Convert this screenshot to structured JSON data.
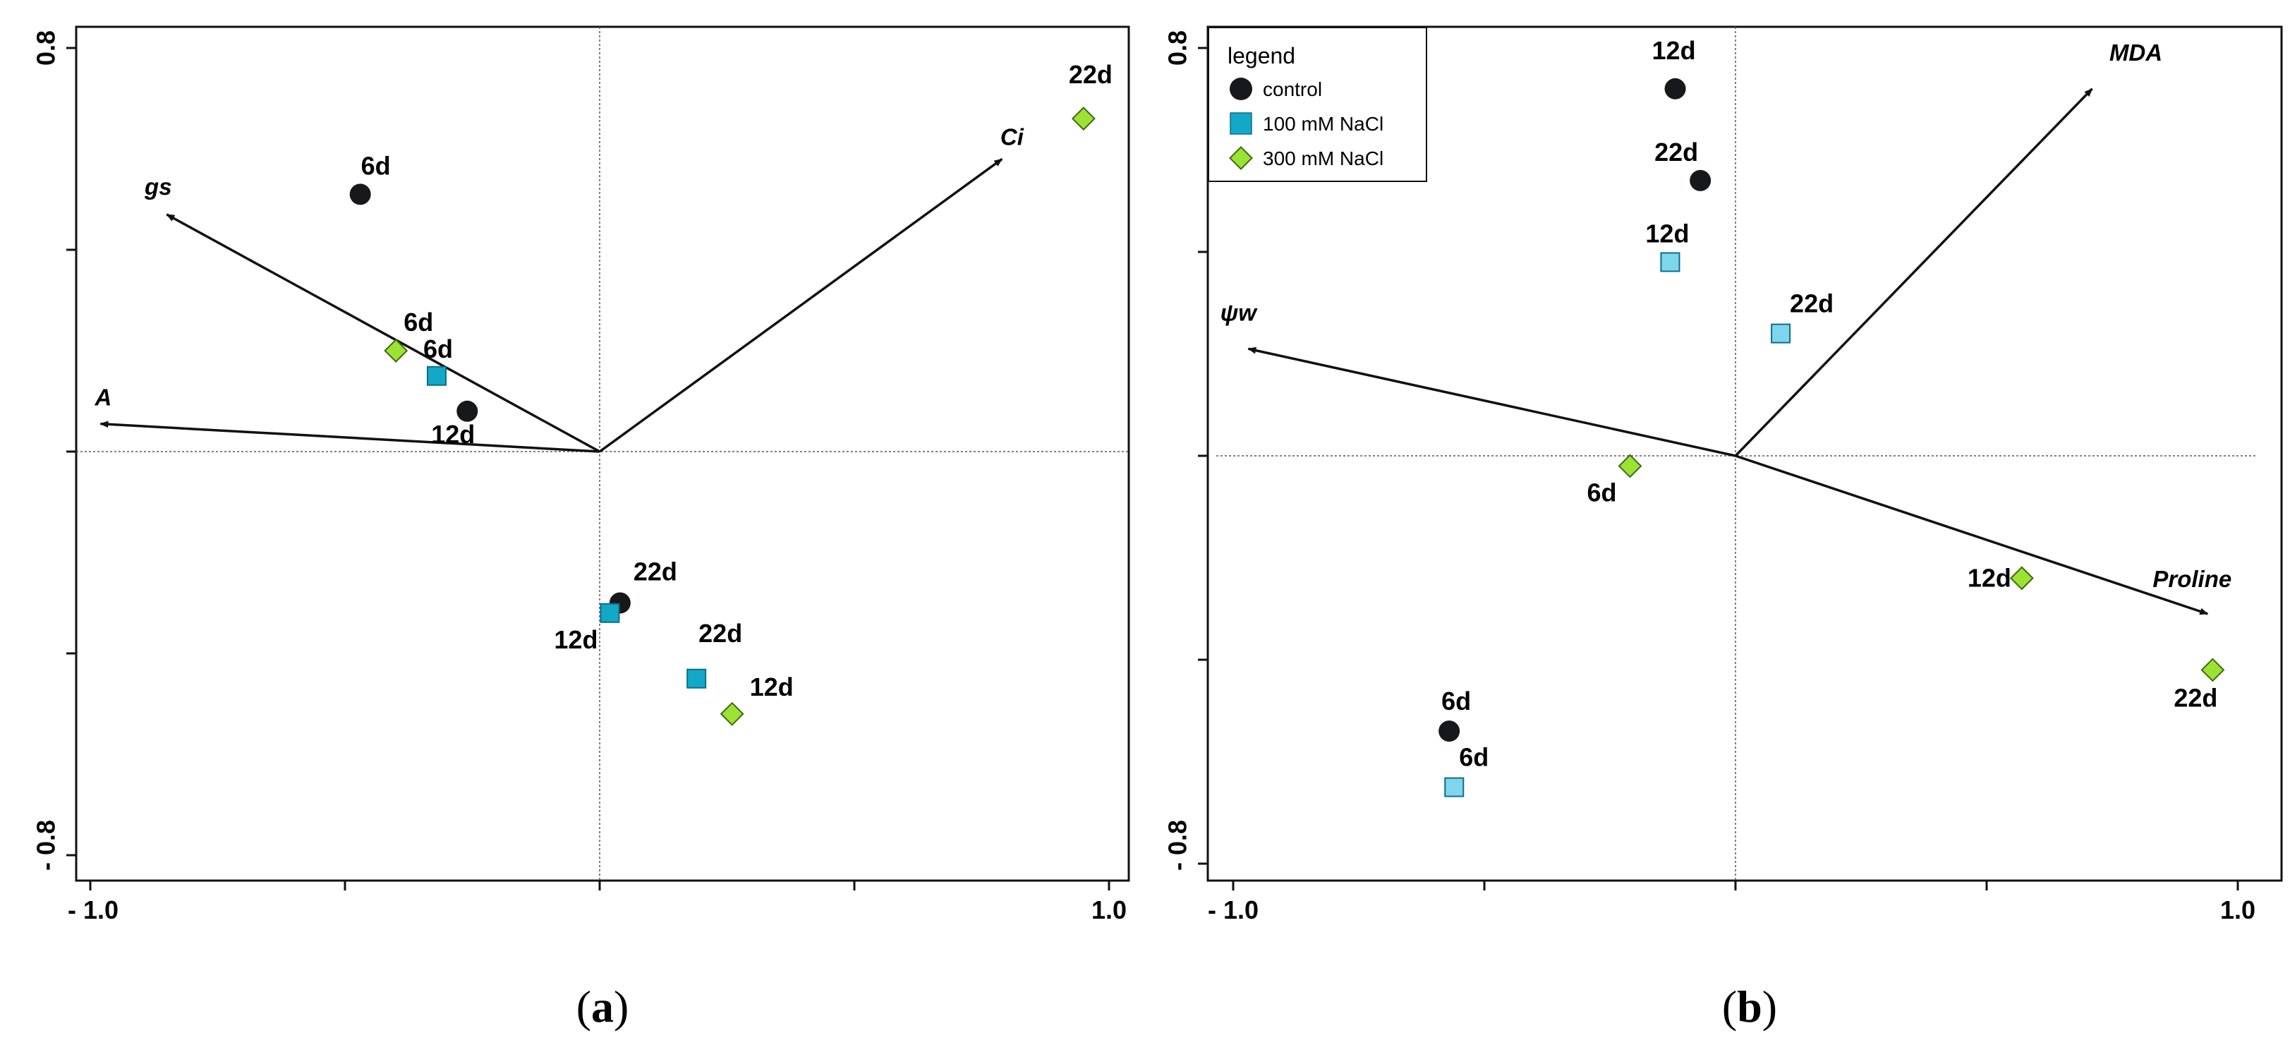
{
  "chart_data": [
    {
      "type": "scatter",
      "subtype": "PCA biplot",
      "panel_label": "(a)",
      "panel_letter": "a",
      "xlim": [
        -1.0,
        1.0
      ],
      "ylim": [
        -0.8,
        0.8
      ],
      "x_tick_labels": [
        "- 1.0",
        "1.0"
      ],
      "y_tick_labels": [
        "0.8",
        "- 0.8"
      ],
      "vectors": [
        {
          "name": "gs",
          "x": -0.85,
          "y": 0.47
        },
        {
          "name": "A",
          "x": -0.98,
          "y": 0.055
        },
        {
          "name": "Ci",
          "x": 0.79,
          "y": 0.58
        }
      ],
      "points": [
        {
          "label": "6d",
          "group": "control",
          "x": -0.47,
          "y": 0.51
        },
        {
          "label": "12d",
          "group": "control",
          "x": -0.26,
          "y": 0.08
        },
        {
          "label": "22d",
          "group": "control",
          "x": 0.04,
          "y": -0.3
        },
        {
          "label": "6d",
          "group": "100 mM NaCl",
          "x": -0.32,
          "y": 0.15
        },
        {
          "label": "12d",
          "group": "100 mM NaCl",
          "x": 0.02,
          "y": -0.32
        },
        {
          "label": "22d",
          "group": "100 mM NaCl",
          "x": 0.19,
          "y": -0.45
        },
        {
          "label": "6d",
          "group": "300 mM NaCl",
          "x": -0.4,
          "y": 0.2
        },
        {
          "label": "12d",
          "group": "300 mM NaCl",
          "x": 0.26,
          "y": -0.52
        },
        {
          "label": "22d",
          "group": "300 mM NaCl",
          "x": 0.95,
          "y": 0.66
        }
      ]
    },
    {
      "type": "scatter",
      "subtype": "PCA biplot",
      "panel_label": "(b)",
      "panel_letter": "b",
      "xlim": [
        -1.0,
        1.0
      ],
      "ylim": [
        -0.8,
        0.8
      ],
      "x_tick_labels": [
        "- 1.0",
        "1.0"
      ],
      "y_tick_labels": [
        "0.8",
        "- 0.8"
      ],
      "legend": {
        "title": "legend",
        "position": "top-left",
        "entries": [
          {
            "name": "control",
            "marker": "circle",
            "color": "#17181c"
          },
          {
            "name": "100 mM NaCl",
            "marker": "square",
            "color": "#13a8c8"
          },
          {
            "name": "300 mM NaCl",
            "marker": "diamond",
            "color": "#9be234"
          }
        ]
      },
      "vectors": [
        {
          "name": "ψw",
          "x": -0.97,
          "y": 0.21
        },
        {
          "name": "MDA",
          "x": 0.71,
          "y": 0.72
        },
        {
          "name": "Proline",
          "x": 0.94,
          "y": -0.31
        }
      ],
      "points": [
        {
          "label": "12d",
          "group": "control",
          "x": -0.12,
          "y": 0.72
        },
        {
          "label": "22d",
          "group": "control",
          "x": -0.07,
          "y": 0.54
        },
        {
          "label": "6d",
          "group": "control",
          "x": -0.57,
          "y": -0.54
        },
        {
          "label": "12d",
          "group": "100 mM NaCl",
          "x": -0.13,
          "y": 0.38
        },
        {
          "label": "22d",
          "group": "100 mM NaCl",
          "x": 0.09,
          "y": 0.24
        },
        {
          "label": "6d",
          "group": "100 mM NaCl",
          "x": -0.56,
          "y": -0.65
        },
        {
          "label": "6d",
          "group": "300 mM NaCl",
          "x": -0.21,
          "y": -0.02
        },
        {
          "label": "12d",
          "group": "300 mM NaCl",
          "x": 0.57,
          "y": -0.24
        },
        {
          "label": "22d",
          "group": "300 mM NaCl",
          "x": 0.95,
          "y": -0.42
        }
      ]
    }
  ],
  "colors": {
    "control": "#17181c",
    "100 mM NaCl": "#13a8c8",
    "300 mM NaCl": "#9be234"
  }
}
